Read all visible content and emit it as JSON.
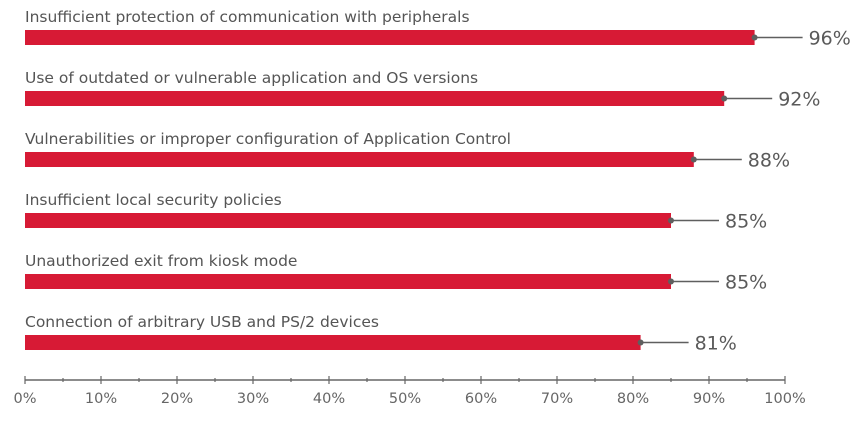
{
  "chart_data": {
    "type": "bar",
    "orientation": "horizontal",
    "title": "",
    "xlabel": "",
    "ylabel": "",
    "categories": [
      "Insufficient protection of communication with peripherals",
      "Use of outdated or vulnerable application and OS versions",
      "Vulnerabilities or improper configuration of Application Control",
      "Insufficient local security policies",
      "Unauthorized exit from kiosk mode",
      "Connection of arbitrary USB and PS/2 devices"
    ],
    "values": [
      96,
      92,
      88,
      85,
      85,
      81
    ],
    "value_labels": [
      "96%",
      "92%",
      "88%",
      "85%",
      "85%",
      "81%"
    ],
    "xlim": [
      0,
      100
    ],
    "x_ticks": [
      0,
      10,
      20,
      30,
      40,
      50,
      60,
      70,
      80,
      90,
      100
    ],
    "x_tick_labels": [
      "0%",
      "10%",
      "20%",
      "30%",
      "40%",
      "50%",
      "60%",
      "70%",
      "80%",
      "90%",
      "100%"
    ],
    "minor_tick_step": 5,
    "grid": false,
    "legend": "none",
    "colors": {
      "bar": "#d71a35",
      "leader": "#5f5f5f",
      "axis": "#666666",
      "text": "#555555"
    }
  }
}
